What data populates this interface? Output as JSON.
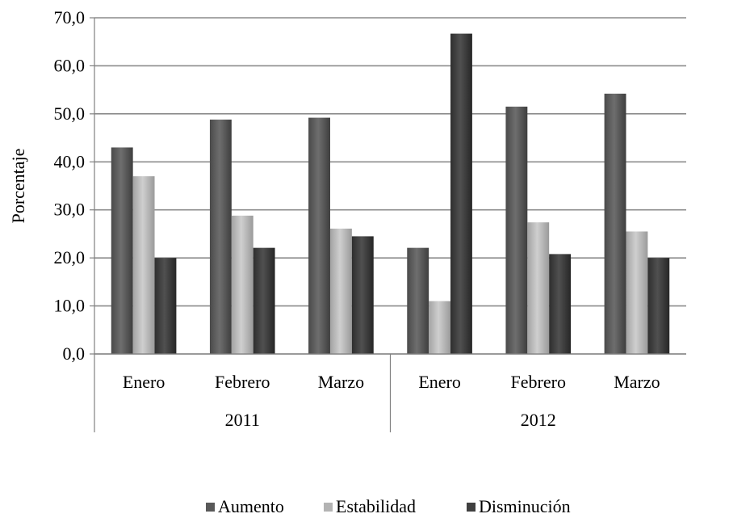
{
  "chart_data": {
    "type": "bar",
    "title": "",
    "xlabel": "",
    "ylabel": "Porcentaje",
    "ylim": [
      0,
      70
    ],
    "yticks": [
      "0,0",
      "10,0",
      "20,0",
      "30,0",
      "40,0",
      "50,0",
      "60,0",
      "70,0"
    ],
    "grid": true,
    "legend_position": "bottom",
    "groups": [
      {
        "label": "2011",
        "categories": [
          "Enero",
          "Febrero",
          "Marzo"
        ]
      },
      {
        "label": "2012",
        "categories": [
          "Enero",
          "Febrero",
          "Marzo"
        ]
      }
    ],
    "categories": [
      "Enero",
      "Febrero",
      "Marzo",
      "Enero",
      "Febrero",
      "Marzo"
    ],
    "series": [
      {
        "name": "Aumento",
        "color": "#595959",
        "values": [
          43.0,
          48.8,
          49.2,
          22.1,
          51.5,
          54.2
        ]
      },
      {
        "name": "Estabilidad",
        "color": "#b3b3b3",
        "values": [
          37.0,
          28.8,
          26.1,
          11.0,
          27.4,
          25.5
        ]
      },
      {
        "name": "Disminución",
        "color": "#404040",
        "values": [
          20.0,
          22.1,
          24.5,
          66.7,
          20.8,
          20.0
        ]
      }
    ]
  }
}
